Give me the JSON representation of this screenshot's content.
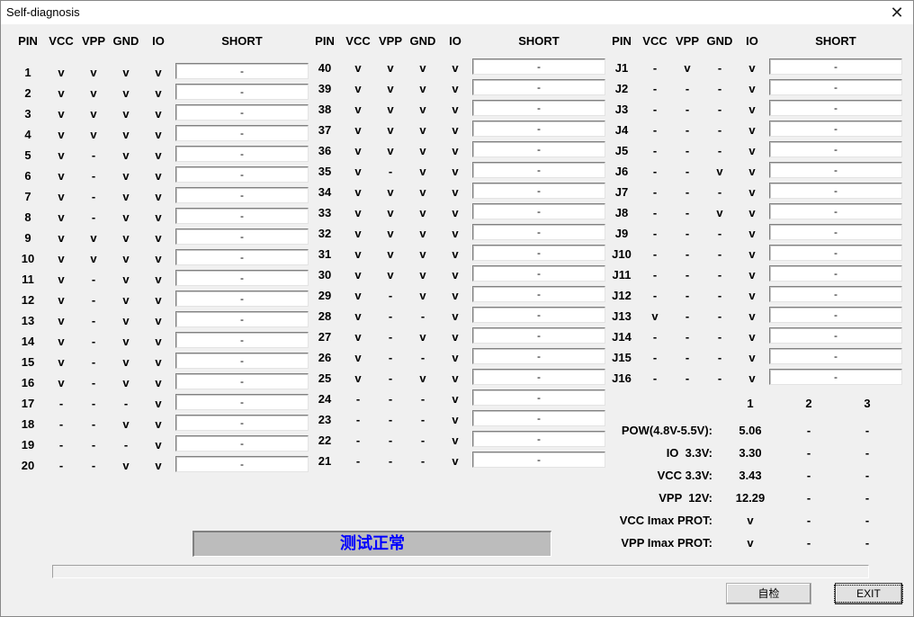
{
  "window": {
    "title": "Self-diagnosis",
    "close_icon": "close-icon"
  },
  "headers": [
    "PIN",
    "VCC",
    "VPP",
    "GND",
    "IO",
    "SHORT"
  ],
  "groups": [
    {
      "rows": [
        [
          "1",
          "v",
          "v",
          "v",
          "v",
          "-"
        ],
        [
          "2",
          "v",
          "v",
          "v",
          "v",
          "-"
        ],
        [
          "3",
          "v",
          "v",
          "v",
          "v",
          "-"
        ],
        [
          "4",
          "v",
          "v",
          "v",
          "v",
          "-"
        ],
        [
          "5",
          "v",
          "-",
          "v",
          "v",
          "-"
        ],
        [
          "6",
          "v",
          "-",
          "v",
          "v",
          "-"
        ],
        [
          "7",
          "v",
          "-",
          "v",
          "v",
          "-"
        ],
        [
          "8",
          "v",
          "-",
          "v",
          "v",
          "-"
        ],
        [
          "9",
          "v",
          "v",
          "v",
          "v",
          "-"
        ],
        [
          "10",
          "v",
          "v",
          "v",
          "v",
          "-"
        ],
        [
          "11",
          "v",
          "-",
          "v",
          "v",
          "-"
        ],
        [
          "12",
          "v",
          "-",
          "v",
          "v",
          "-"
        ],
        [
          "13",
          "v",
          "-",
          "v",
          "v",
          "-"
        ],
        [
          "14",
          "v",
          "-",
          "v",
          "v",
          "-"
        ],
        [
          "15",
          "v",
          "-",
          "v",
          "v",
          "-"
        ],
        [
          "16",
          "v",
          "-",
          "v",
          "v",
          "-"
        ],
        [
          "17",
          "-",
          "-",
          "-",
          "v",
          "-"
        ],
        [
          "18",
          "-",
          "-",
          "v",
          "v",
          "-"
        ],
        [
          "19",
          "-",
          "-",
          "-",
          "v",
          "-"
        ],
        [
          "20",
          "-",
          "-",
          "v",
          "v",
          "-"
        ]
      ]
    },
    {
      "rows": [
        [
          "40",
          "v",
          "v",
          "v",
          "v",
          "-"
        ],
        [
          "39",
          "v",
          "v",
          "v",
          "v",
          "-"
        ],
        [
          "38",
          "v",
          "v",
          "v",
          "v",
          "-"
        ],
        [
          "37",
          "v",
          "v",
          "v",
          "v",
          "-"
        ],
        [
          "36",
          "v",
          "v",
          "v",
          "v",
          "-"
        ],
        [
          "35",
          "v",
          "-",
          "v",
          "v",
          "-"
        ],
        [
          "34",
          "v",
          "v",
          "v",
          "v",
          "-"
        ],
        [
          "33",
          "v",
          "v",
          "v",
          "v",
          "-"
        ],
        [
          "32",
          "v",
          "v",
          "v",
          "v",
          "-"
        ],
        [
          "31",
          "v",
          "v",
          "v",
          "v",
          "-"
        ],
        [
          "30",
          "v",
          "v",
          "v",
          "v",
          "-"
        ],
        [
          "29",
          "v",
          "-",
          "v",
          "v",
          "-"
        ],
        [
          "28",
          "v",
          "-",
          "-",
          "v",
          "-"
        ],
        [
          "27",
          "v",
          "-",
          "v",
          "v",
          "-"
        ],
        [
          "26",
          "v",
          "-",
          "-",
          "v",
          "-"
        ],
        [
          "25",
          "v",
          "-",
          "v",
          "v",
          "-"
        ],
        [
          "24",
          "-",
          "-",
          "-",
          "v",
          "-"
        ],
        [
          "23",
          "-",
          "-",
          "-",
          "v",
          "-"
        ],
        [
          "22",
          "-",
          "-",
          "-",
          "v",
          "-"
        ],
        [
          "21",
          "-",
          "-",
          "-",
          "v",
          "-"
        ]
      ]
    },
    {
      "rows": [
        [
          "J1",
          "-",
          "v",
          "-",
          "v",
          "-"
        ],
        [
          "J2",
          "-",
          "-",
          "-",
          "v",
          "-"
        ],
        [
          "J3",
          "-",
          "-",
          "-",
          "v",
          "-"
        ],
        [
          "J4",
          "-",
          "-",
          "-",
          "v",
          "-"
        ],
        [
          "J5",
          "-",
          "-",
          "-",
          "v",
          "-"
        ],
        [
          "J6",
          "-",
          "-",
          "v",
          "v",
          "-"
        ],
        [
          "J7",
          "-",
          "-",
          "-",
          "v",
          "-"
        ],
        [
          "J8",
          "-",
          "-",
          "v",
          "v",
          "-"
        ],
        [
          "J9",
          "-",
          "-",
          "-",
          "v",
          "-"
        ],
        [
          "J10",
          "-",
          "-",
          "-",
          "v",
          "-"
        ],
        [
          "J11",
          "-",
          "-",
          "-",
          "v",
          "-"
        ],
        [
          "J12",
          "-",
          "-",
          "-",
          "v",
          "-"
        ],
        [
          "J13",
          "v",
          "-",
          "-",
          "v",
          "-"
        ],
        [
          "J14",
          "-",
          "-",
          "-",
          "v",
          "-"
        ],
        [
          "J15",
          "-",
          "-",
          "-",
          "v",
          "-"
        ],
        [
          "J16",
          "-",
          "-",
          "-",
          "v",
          "-"
        ]
      ]
    }
  ],
  "voltages": {
    "columns": [
      "1",
      "2",
      "3"
    ],
    "rows": [
      {
        "label": "POW(4.8V-5.5V):",
        "values": [
          "5.06",
          "-",
          "-"
        ]
      },
      {
        "label": "IO  3.3V:",
        "values": [
          "3.30",
          "-",
          "-"
        ]
      },
      {
        "label": "VCC 3.3V:",
        "values": [
          "3.43",
          "-",
          "-"
        ]
      },
      {
        "label": "VPP  12V:",
        "values": [
          "12.29",
          "-",
          "-"
        ]
      },
      {
        "label": "VCC Imax PROT:",
        "values": [
          "v",
          "-",
          "-"
        ]
      },
      {
        "label": "VPP Imax PROT:",
        "values": [
          "v",
          "-",
          "-"
        ]
      }
    ]
  },
  "status": {
    "text": "测试正常",
    "color": "#0000ff"
  },
  "progress": {
    "value": 0
  },
  "buttons": {
    "self_check": "自检",
    "exit": "EXIT"
  }
}
